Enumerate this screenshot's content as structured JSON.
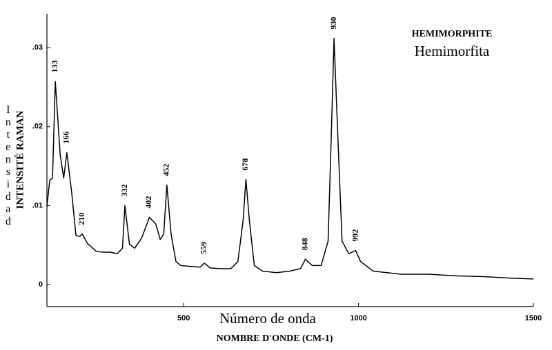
{
  "chart_data": {
    "type": "line",
    "title": "HEMIMORPHITE",
    "subtitle": "Hemimorfita",
    "x_label": "Número de onda",
    "x_label_2": "NOMBRE D'ONDE (CM-1)",
    "y_label": "INTENSITÉ RAMAN",
    "y_label_2": "Intensidad",
    "xlim": [
      109,
      1500
    ],
    "ylim": [
      -0.0028,
      0.0343
    ],
    "xticks": [
      500,
      1000,
      1500
    ],
    "yticks": [
      {
        "value": 0,
        "label": "0"
      },
      {
        "value": 0.01,
        "label": ".01"
      },
      {
        "value": 0.02,
        "label": ".02"
      },
      {
        "value": 0.03,
        "label": ".03"
      }
    ],
    "color": "#000000",
    "x": [
      109,
      117,
      125,
      133,
      147,
      157,
      166,
      180,
      192,
      203,
      210,
      225,
      250,
      270,
      290,
      310,
      325,
      332,
      345,
      360,
      380,
      402,
      420,
      433,
      443,
      452,
      464,
      478,
      492,
      518,
      547,
      559,
      576,
      605,
      635,
      655,
      670,
      678,
      688,
      702,
      725,
      765,
      804,
      834,
      848,
      868,
      893,
      913,
      922,
      930,
      941,
      953,
      972,
      992,
      1006,
      1042,
      1121,
      1200,
      1279,
      1358,
      1437,
      1500
    ],
    "values": [
      0.0099,
      0.0132,
      0.0135,
      0.0257,
      0.0164,
      0.0135,
      0.0167,
      0.0116,
      0.0062,
      0.0061,
      0.0064,
      0.0052,
      0.0042,
      0.0041,
      0.0041,
      0.0039,
      0.0046,
      0.01,
      0.0051,
      0.0046,
      0.0059,
      0.0085,
      0.0077,
      0.0057,
      0.0064,
      0.0126,
      0.0064,
      0.0029,
      0.0024,
      0.0023,
      0.0022,
      0.0027,
      0.0021,
      0.002,
      0.002,
      0.0029,
      0.0081,
      0.0133,
      0.0081,
      0.0024,
      0.0017,
      0.0015,
      0.0017,
      0.002,
      0.0032,
      0.0024,
      0.0024,
      0.0055,
      0.0186,
      0.0312,
      0.0186,
      0.0055,
      0.0039,
      0.0043,
      0.0029,
      0.0017,
      0.0013,
      0.0013,
      0.0011,
      0.001,
      0.0008,
      0.0007
    ],
    "peak_labels": [
      133,
      166,
      210,
      332,
      402,
      452,
      559,
      678,
      848,
      930,
      992
    ]
  }
}
